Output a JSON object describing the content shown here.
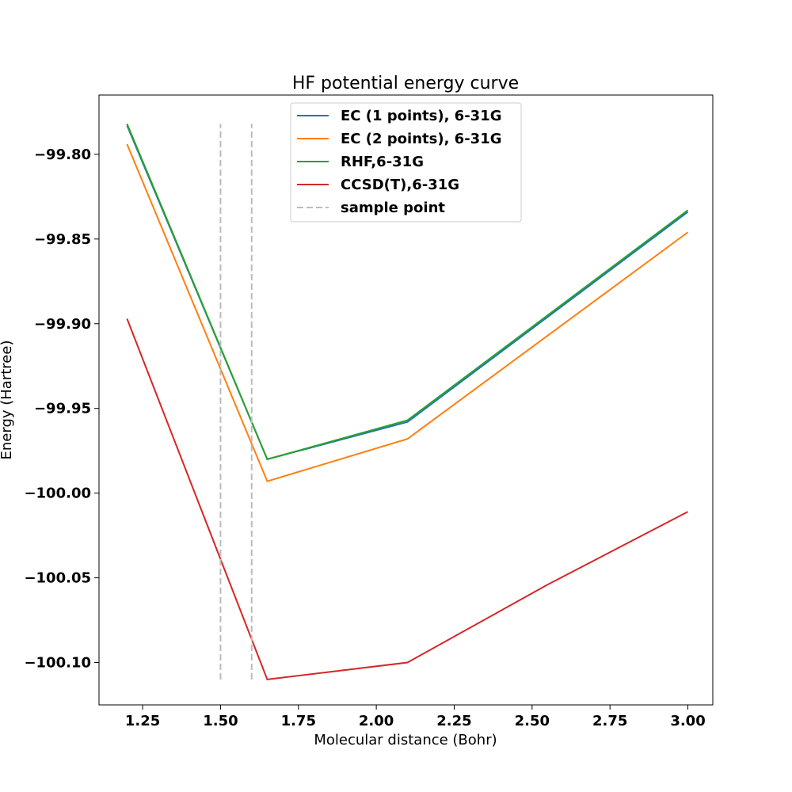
{
  "chart_data": {
    "type": "line",
    "title": "HF potential energy curve",
    "xlabel": "Molecular distance (Bohr)",
    "ylabel": "Energy (Hartree)",
    "xlim": [
      1.11,
      3.08
    ],
    "ylim": [
      -100.125,
      -99.765
    ],
    "x_ticks": [
      1.25,
      1.5,
      1.75,
      2.0,
      2.25,
      2.5,
      2.75,
      3.0
    ],
    "x_tick_labels": [
      "1.25",
      "1.50",
      "1.75",
      "2.00",
      "2.25",
      "2.50",
      "2.75",
      "3.00"
    ],
    "y_ticks": [
      -99.8,
      -99.85,
      -99.9,
      -99.95,
      -100.0,
      -100.05,
      -100.1
    ],
    "y_tick_labels": [
      "−99.80",
      "−99.85",
      "−99.90",
      "−99.95",
      "−100.00",
      "−100.05",
      "−100.10"
    ],
    "grid": false,
    "legend_position": "top-center",
    "series": [
      {
        "name": "EC (1 points), 6-31G",
        "color": "#1f77b4",
        "style": "solid",
        "x": [
          1.2,
          1.65,
          2.1,
          3.0
        ],
        "y": [
          -99.783,
          -99.98,
          -99.958,
          -99.834
        ]
      },
      {
        "name": "EC (2 points), 6-31G",
        "color": "#ff7f0e",
        "style": "solid",
        "x": [
          1.2,
          1.65,
          2.1,
          3.0
        ],
        "y": [
          -99.794,
          -99.993,
          -99.968,
          -99.846
        ]
      },
      {
        "name": "RHF,6-31G",
        "color": "#2ca02c",
        "style": "solid",
        "x": [
          1.2,
          1.65,
          2.1,
          3.0
        ],
        "y": [
          -99.782,
          -99.98,
          -99.957,
          -99.833
        ]
      },
      {
        "name": "CCSD(T),6-31G",
        "color": "#d62728",
        "style": "solid",
        "x": [
          1.2,
          1.65,
          2.1,
          2.55,
          3.0
        ],
        "y": [
          -99.897,
          -100.11,
          -100.1,
          -100.054,
          -100.011
        ]
      },
      {
        "name": "sample point",
        "color": "#bbbbbb",
        "style": "dashed",
        "vlines": [
          {
            "x": 1.5,
            "y_min": -100.11,
            "y_max": -99.782
          },
          {
            "x": 1.6,
            "y_min": -100.11,
            "y_max": -99.782
          }
        ]
      }
    ]
  }
}
